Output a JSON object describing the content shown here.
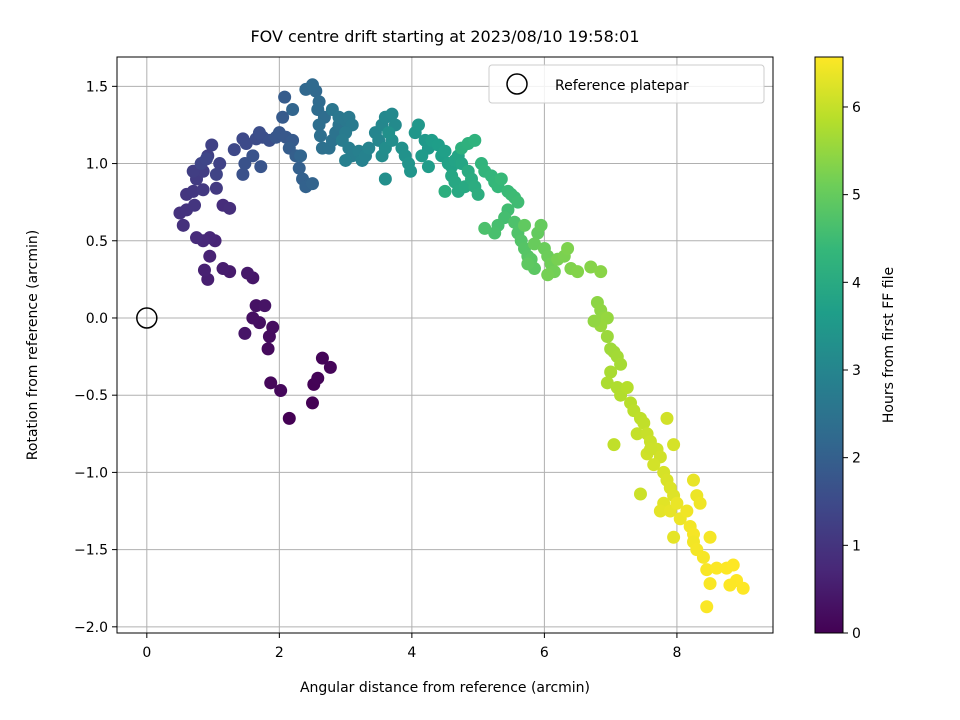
{
  "chart_data": {
    "type": "scatter",
    "title": "FOV centre drift starting at 2023/08/10 19:58:01",
    "xlabel": "Angular distance from reference (arcmin)",
    "ylabel": "Rotation from reference (arcmin)",
    "xlim": [
      -0.45,
      9.45
    ],
    "ylim": [
      -2.04,
      1.69
    ],
    "x_ticks": [
      0,
      2,
      4,
      6,
      8
    ],
    "y_ticks": [
      -2.0,
      -1.5,
      -1.0,
      -0.5,
      0.0,
      0.5,
      1.0,
      1.5
    ],
    "x_tick_labels": [
      "0",
      "2",
      "4",
      "6",
      "8"
    ],
    "y_tick_labels": [
      "−2.0",
      "−1.5",
      "−1.0",
      "−0.5",
      "0.0",
      "0.5",
      "1.0",
      "1.5"
    ],
    "grid": true,
    "legend_position": "top-right",
    "legend": [
      {
        "label": "Reference platepar",
        "marker": "open-circle"
      }
    ],
    "reference_point": {
      "x": 0.0,
      "y": 0.0
    },
    "colorbar": {
      "label": "Hours from first FF file",
      "colormap": "viridis",
      "range": [
        0,
        6.57
      ],
      "ticks": [
        0,
        1,
        2,
        3,
        4,
        5,
        6
      ],
      "tick_labels": [
        "0",
        "1",
        "2",
        "3",
        "4",
        "5",
        "6"
      ]
    },
    "points": [
      [
        2.15,
        -0.65,
        0.0
      ],
      [
        2.5,
        -0.55,
        0.02
      ],
      [
        2.52,
        -0.43,
        0.04
      ],
      [
        2.58,
        -0.39,
        0.06
      ],
      [
        2.65,
        -0.26,
        0.08
      ],
      [
        2.77,
        -0.32,
        0.1
      ],
      [
        1.87,
        -0.42,
        0.12
      ],
      [
        2.02,
        -0.47,
        0.14
      ],
      [
        1.83,
        -0.2,
        0.17
      ],
      [
        1.85,
        -0.12,
        0.2
      ],
      [
        1.9,
        -0.06,
        0.23
      ],
      [
        1.7,
        -0.03,
        0.26
      ],
      [
        1.6,
        0.0,
        0.29
      ],
      [
        1.65,
        0.08,
        0.32
      ],
      [
        1.78,
        0.08,
        0.35
      ],
      [
        1.48,
        -0.1,
        0.38
      ],
      [
        1.6,
        0.26,
        0.41
      ],
      [
        1.52,
        0.29,
        0.44
      ],
      [
        1.25,
        0.3,
        0.48
      ],
      [
        1.15,
        0.32,
        0.52
      ],
      [
        0.92,
        0.25,
        0.56
      ],
      [
        0.87,
        0.31,
        0.6
      ],
      [
        0.95,
        0.4,
        0.64
      ],
      [
        1.03,
        0.5,
        0.68
      ],
      [
        0.95,
        0.52,
        0.72
      ],
      [
        0.85,
        0.5,
        0.76
      ],
      [
        0.75,
        0.52,
        0.8
      ],
      [
        1.15,
        0.73,
        0.84
      ],
      [
        1.25,
        0.71,
        0.88
      ],
      [
        0.55,
        0.6,
        0.92
      ],
      [
        0.5,
        0.68,
        0.95
      ],
      [
        0.6,
        0.7,
        0.98
      ],
      [
        0.72,
        0.73,
        1.01
      ],
      [
        0.6,
        0.8,
        1.04
      ],
      [
        0.7,
        0.82,
        1.07
      ],
      [
        0.85,
        0.83,
        1.1
      ],
      [
        1.05,
        0.84,
        1.13
      ],
      [
        0.75,
        0.9,
        1.16
      ],
      [
        0.85,
        0.95,
        1.19
      ],
      [
        0.7,
        0.95,
        1.22
      ],
      [
        0.92,
        1.05,
        1.25
      ],
      [
        0.98,
        1.12,
        1.28
      ],
      [
        1.1,
        1.0,
        1.31
      ],
      [
        1.05,
        0.93,
        1.34
      ],
      [
        0.82,
        1.0,
        1.37
      ],
      [
        0.9,
        1.03,
        1.4
      ],
      [
        1.32,
        1.09,
        1.43
      ],
      [
        1.45,
        1.16,
        1.46
      ],
      [
        1.5,
        1.13,
        1.49
      ],
      [
        1.65,
        1.16,
        1.52
      ],
      [
        1.75,
        1.17,
        1.55
      ],
      [
        1.7,
        1.2,
        1.58
      ],
      [
        1.85,
        1.15,
        1.61
      ],
      [
        1.45,
        0.93,
        1.64
      ],
      [
        1.48,
        1.0,
        1.67
      ],
      [
        1.6,
        1.05,
        1.7
      ],
      [
        1.72,
        0.98,
        1.73
      ],
      [
        1.95,
        1.17,
        1.76
      ],
      [
        2.0,
        1.2,
        1.79
      ],
      [
        2.1,
        1.17,
        1.82
      ],
      [
        2.2,
        1.15,
        1.85
      ],
      [
        2.05,
        1.3,
        1.88
      ],
      [
        2.08,
        1.43,
        1.91
      ],
      [
        2.15,
        1.1,
        1.94
      ],
      [
        2.25,
        1.05,
        1.97
      ],
      [
        2.3,
        0.97,
        2.0
      ],
      [
        2.35,
        0.9,
        2.03
      ],
      [
        2.4,
        0.85,
        2.06
      ],
      [
        2.5,
        0.87,
        2.09
      ],
      [
        2.32,
        1.05,
        2.12
      ],
      [
        2.2,
        1.35,
        2.15
      ],
      [
        2.4,
        1.48,
        2.18
      ],
      [
        2.55,
        1.47,
        2.21
      ],
      [
        2.5,
        1.51,
        2.24
      ],
      [
        2.6,
        1.4,
        2.27
      ],
      [
        2.58,
        1.35,
        2.3
      ],
      [
        2.68,
        1.3,
        2.33
      ],
      [
        2.6,
        1.25,
        2.36
      ],
      [
        2.62,
        1.18,
        2.39
      ],
      [
        2.65,
        1.1,
        2.42
      ],
      [
        2.75,
        1.1,
        2.45
      ],
      [
        2.8,
        1.15,
        2.48
      ],
      [
        2.85,
        1.2,
        2.51
      ],
      [
        2.9,
        1.25,
        2.54
      ],
      [
        2.8,
        1.35,
        2.57
      ],
      [
        2.9,
        1.3,
        2.6
      ],
      [
        3.0,
        1.28,
        2.63
      ],
      [
        3.05,
        1.3,
        2.66
      ],
      [
        3.1,
        1.25,
        2.69
      ],
      [
        3.0,
        1.2,
        2.72
      ],
      [
        2.95,
        1.15,
        2.75
      ],
      [
        3.05,
        1.1,
        2.78
      ],
      [
        3.1,
        1.05,
        2.81
      ],
      [
        3.0,
        1.02,
        2.84
      ],
      [
        3.2,
        1.08,
        2.87
      ],
      [
        3.25,
        1.02,
        2.9
      ],
      [
        3.3,
        1.05,
        2.93
      ],
      [
        3.35,
        1.1,
        2.96
      ],
      [
        3.45,
        1.2,
        2.99
      ],
      [
        3.5,
        1.15,
        3.02
      ],
      [
        3.55,
        1.25,
        3.05
      ],
      [
        3.6,
        1.3,
        3.08
      ],
      [
        3.7,
        1.32,
        3.11
      ],
      [
        3.75,
        1.25,
        3.14
      ],
      [
        3.55,
        1.05,
        3.17
      ],
      [
        3.6,
        1.1,
        3.2
      ],
      [
        3.7,
        1.15,
        3.23
      ],
      [
        3.6,
        0.9,
        3.26
      ],
      [
        3.65,
        1.2,
        3.29
      ],
      [
        3.85,
        1.1,
        3.32
      ],
      [
        3.9,
        1.05,
        3.35
      ],
      [
        3.95,
        1.0,
        3.38
      ],
      [
        3.98,
        0.95,
        3.41
      ],
      [
        4.05,
        1.2,
        3.44
      ],
      [
        4.1,
        1.25,
        3.47
      ],
      [
        4.2,
        1.15,
        3.5
      ],
      [
        4.25,
        1.1,
        3.53
      ],
      [
        4.15,
        1.05,
        3.56
      ],
      [
        4.25,
        0.98,
        3.59
      ],
      [
        4.3,
        1.15,
        3.62
      ],
      [
        4.4,
        1.12,
        3.65
      ],
      [
        4.45,
        1.05,
        3.68
      ],
      [
        4.5,
        1.08,
        3.71
      ],
      [
        4.55,
        1.0,
        3.74
      ],
      [
        4.6,
        0.98,
        3.77
      ],
      [
        4.65,
        1.02,
        3.8
      ],
      [
        4.7,
        1.05,
        3.83
      ],
      [
        4.75,
        1.0,
        3.86
      ],
      [
        4.6,
        0.92,
        3.89
      ],
      [
        4.65,
        0.88,
        3.92
      ],
      [
        4.7,
        0.82,
        3.95
      ],
      [
        4.8,
        0.85,
        3.98
      ],
      [
        4.85,
        0.95,
        4.01
      ],
      [
        4.9,
        0.9,
        4.04
      ],
      [
        4.95,
        0.85,
        4.07
      ],
      [
        5.0,
        0.8,
        4.1
      ],
      [
        4.5,
        0.82,
        4.13
      ],
      [
        4.75,
        1.1,
        4.16
      ],
      [
        4.85,
        1.13,
        4.19
      ],
      [
        4.95,
        1.15,
        4.22
      ],
      [
        5.05,
        1.0,
        4.25
      ],
      [
        5.1,
        0.95,
        4.28
      ],
      [
        5.2,
        0.92,
        4.31
      ],
      [
        5.25,
        0.88,
        4.34
      ],
      [
        5.3,
        0.85,
        4.37
      ],
      [
        5.35,
        0.9,
        4.4
      ],
      [
        5.45,
        0.82,
        4.43
      ],
      [
        5.5,
        0.8,
        4.46
      ],
      [
        5.55,
        0.78,
        4.49
      ],
      [
        5.6,
        0.75,
        4.52
      ],
      [
        5.45,
        0.7,
        4.55
      ],
      [
        5.4,
        0.65,
        4.58
      ],
      [
        5.3,
        0.6,
        4.61
      ],
      [
        5.25,
        0.55,
        4.64
      ],
      [
        5.1,
        0.58,
        4.67
      ],
      [
        5.55,
        0.62,
        4.7
      ],
      [
        5.6,
        0.55,
        4.73
      ],
      [
        5.65,
        0.5,
        4.76
      ],
      [
        5.7,
        0.45,
        4.79
      ],
      [
        5.75,
        0.4,
        4.82
      ],
      [
        5.8,
        0.38,
        4.85
      ],
      [
        5.85,
        0.32,
        4.88
      ],
      [
        5.75,
        0.35,
        4.91
      ],
      [
        5.7,
        0.6,
        4.94
      ],
      [
        5.9,
        0.55,
        4.97
      ],
      [
        5.95,
        0.6,
        5.0
      ],
      [
        5.85,
        0.48,
        5.03
      ],
      [
        6.0,
        0.45,
        5.06
      ],
      [
        6.05,
        0.4,
        5.09
      ],
      [
        6.1,
        0.35,
        5.12
      ],
      [
        6.15,
        0.3,
        5.15
      ],
      [
        6.05,
        0.28,
        5.18
      ],
      [
        6.2,
        0.38,
        5.21
      ],
      [
        6.3,
        0.4,
        5.24
      ],
      [
        6.35,
        0.45,
        5.27
      ],
      [
        6.4,
        0.32,
        5.3
      ],
      [
        6.5,
        0.3,
        5.33
      ],
      [
        6.7,
        0.33,
        5.36
      ],
      [
        6.85,
        0.3,
        5.39
      ],
      [
        6.8,
        0.1,
        5.42
      ],
      [
        6.85,
        0.05,
        5.45
      ],
      [
        6.9,
        0.0,
        5.48
      ],
      [
        6.95,
        0.0,
        5.51
      ],
      [
        6.85,
        -0.05,
        5.54
      ],
      [
        6.95,
        -0.12,
        5.57
      ],
      [
        7.0,
        -0.2,
        5.6
      ],
      [
        7.05,
        -0.22,
        5.63
      ],
      [
        7.1,
        -0.25,
        5.66
      ],
      [
        7.15,
        -0.3,
        5.69
      ],
      [
        7.0,
        -0.35,
        5.72
      ],
      [
        6.95,
        -0.42,
        5.75
      ],
      [
        7.1,
        -0.45,
        5.78
      ],
      [
        7.15,
        -0.5,
        5.81
      ],
      [
        7.25,
        -0.45,
        5.84
      ],
      [
        7.3,
        -0.55,
        5.87
      ],
      [
        7.35,
        -0.6,
        5.9
      ],
      [
        7.45,
        -0.65,
        5.93
      ],
      [
        7.5,
        -0.68,
        5.96
      ],
      [
        7.4,
        -0.75,
        5.99
      ],
      [
        7.55,
        -0.75,
        6.02
      ],
      [
        7.6,
        -0.8,
        6.05
      ],
      [
        7.7,
        -0.85,
        6.08
      ],
      [
        7.75,
        -0.9,
        6.11
      ],
      [
        7.65,
        -0.95,
        6.14
      ],
      [
        7.8,
        -1.0,
        6.17
      ],
      [
        7.85,
        -1.05,
        6.2
      ],
      [
        7.9,
        -1.1,
        6.23
      ],
      [
        7.95,
        -1.15,
        6.26
      ],
      [
        7.8,
        -1.2,
        6.29
      ],
      [
        7.75,
        -1.25,
        6.32
      ],
      [
        7.9,
        -1.25,
        6.35
      ],
      [
        8.0,
        -1.2,
        6.38
      ],
      [
        8.05,
        -1.3,
        6.41
      ],
      [
        8.15,
        -1.25,
        6.44
      ],
      [
        8.2,
        -1.35,
        6.47
      ],
      [
        8.25,
        -1.4,
        6.5
      ],
      [
        7.45,
        -1.14,
        6.06
      ],
      [
        7.55,
        -0.88,
        6.1
      ],
      [
        7.85,
        -0.65,
        6.12
      ],
      [
        7.95,
        -0.82,
        6.16
      ],
      [
        8.25,
        -1.05,
        6.36
      ],
      [
        8.3,
        -1.15,
        6.4
      ],
      [
        8.35,
        -1.2,
        6.43
      ],
      [
        8.25,
        -1.45,
        6.46
      ],
      [
        8.3,
        -1.5,
        6.48
      ],
      [
        8.4,
        -1.55,
        6.5
      ],
      [
        8.45,
        -1.63,
        6.52
      ],
      [
        8.5,
        -1.72,
        6.53
      ],
      [
        8.45,
        -1.87,
        6.54
      ],
      [
        8.6,
        -1.62,
        6.55
      ],
      [
        8.75,
        -1.62,
        6.56
      ],
      [
        8.85,
        -1.6,
        6.57
      ],
      [
        8.9,
        -1.7,
        6.57
      ],
      [
        9.0,
        -1.75,
        6.57
      ],
      [
        8.8,
        -1.73,
        6.56
      ],
      [
        8.5,
        -1.42,
        6.49
      ],
      [
        7.6,
        -0.85,
        6.07
      ],
      [
        7.95,
        -1.42,
        6.33
      ],
      [
        7.05,
        -0.82,
        5.95
      ],
      [
        6.75,
        -0.02,
        5.47
      ]
    ]
  }
}
